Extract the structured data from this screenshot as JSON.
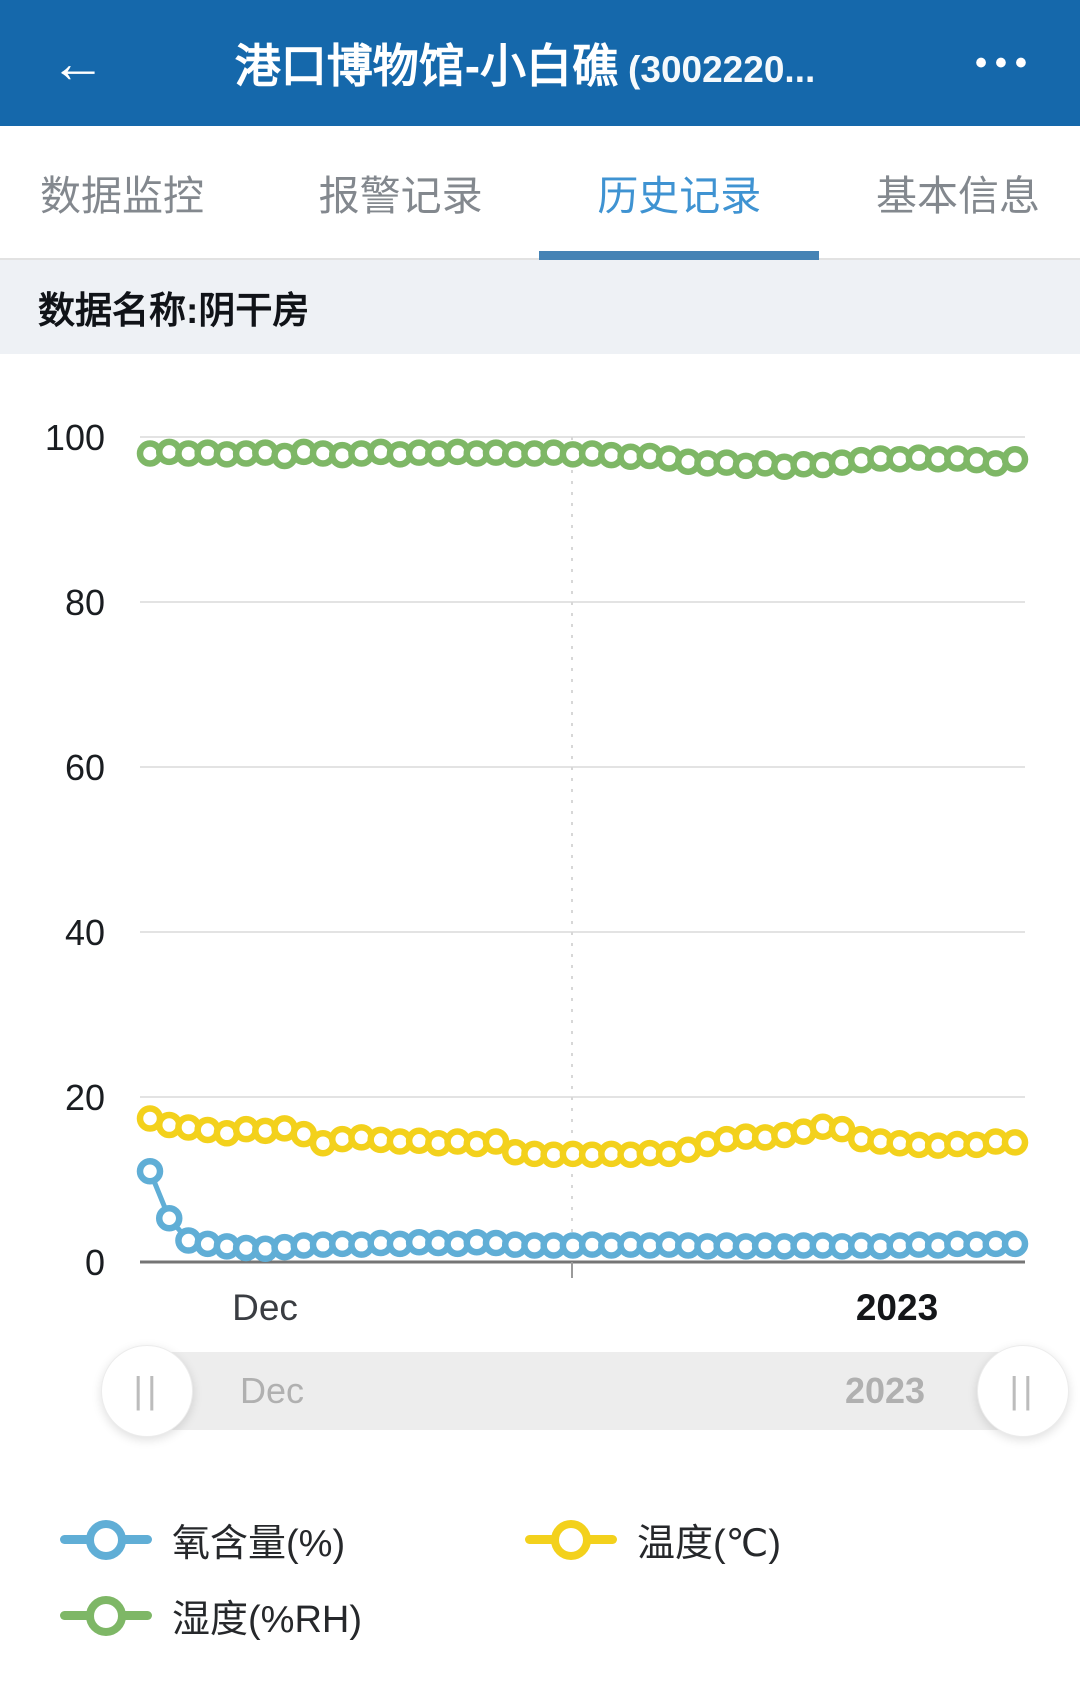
{
  "header": {
    "back_icon": "←",
    "title": "港口博物馆-小白礁",
    "device_code": "(3002220...",
    "menu_icon": "•••"
  },
  "tabs": [
    {
      "label": "数据监控",
      "active": false
    },
    {
      "label": "报警记录",
      "active": false
    },
    {
      "label": "历史记录",
      "active": true
    },
    {
      "label": "基本信息",
      "active": false
    }
  ],
  "subtitle": "数据名称:阴干房",
  "chart_data": {
    "type": "line",
    "title": "数据名称:阴干房",
    "ylim": [
      0,
      100
    ],
    "yticks": [
      0,
      20,
      40,
      60,
      80,
      100
    ],
    "x_tick_labels": [
      "Dec",
      "2023"
    ],
    "grid": true,
    "legend_position": "bottom",
    "series": [
      {
        "name": "氧含量(%)",
        "color": "#60aed6",
        "values": [
          11,
          5.3,
          2.6,
          2.2,
          1.9,
          1.7,
          1.6,
          1.8,
          2,
          2.1,
          2.2,
          2.1,
          2.3,
          2.2,
          2.4,
          2.3,
          2.2,
          2.4,
          2.3,
          2.1,
          2,
          2,
          2,
          2.1,
          2,
          2.1,
          2,
          2.1,
          2,
          1.9,
          2,
          1.9,
          2,
          1.9,
          2,
          2,
          1.9,
          2,
          1.9,
          2,
          2.1,
          2,
          2.2,
          2.1,
          2.2,
          2.2
        ]
      },
      {
        "name": "温度(℃)",
        "color": "#f3d11c",
        "values": [
          17.4,
          16.6,
          16.3,
          16,
          15.6,
          16.1,
          15.9,
          16.2,
          15.5,
          14.4,
          14.9,
          15.1,
          14.8,
          14.6,
          14.7,
          14.4,
          14.6,
          14.3,
          14.6,
          13.3,
          13.1,
          13,
          13.1,
          13,
          13.1,
          13,
          13.2,
          13.1,
          13.6,
          14.3,
          14.9,
          15.2,
          15.1,
          15.4,
          15.8,
          16.4,
          16.1,
          14.9,
          14.6,
          14.4,
          14.2,
          14.1,
          14.3,
          14.2,
          14.6,
          14.5
        ]
      },
      {
        "name": "湿度(%RH)",
        "color": "#7eb766",
        "values": [
          98,
          98.2,
          98,
          98.1,
          97.9,
          98,
          98.1,
          97.7,
          98.2,
          98,
          97.8,
          98,
          98.2,
          97.9,
          98.1,
          98,
          98.2,
          98,
          98.1,
          97.9,
          98,
          98.1,
          97.9,
          98,
          97.8,
          97.6,
          97.7,
          97.4,
          97,
          96.8,
          96.9,
          96.5,
          96.8,
          96.4,
          96.7,
          96.6,
          96.9,
          97.2,
          97.4,
          97.3,
          97.5,
          97.3,
          97.4,
          97.2,
          96.8,
          97.3
        ]
      }
    ]
  },
  "slider": {
    "left_label": "Dec",
    "right_label": "2023",
    "handle_glyph": "||"
  },
  "colors": {
    "header_bg": "#1568ab",
    "active_tab": "#3f93d2",
    "tab_underline": "#4583b5",
    "inactive_tab": "#83888e",
    "subtitle_bg": "#eef1f5",
    "grid_line": "#e3e3e3",
    "axis_line": "#757575",
    "dashed_line": "#d7d7d7",
    "tick_label": "#1a1d21",
    "x_label_month": "#3a3d42",
    "x_label_year": "#141619",
    "slider_track": "#ededed",
    "slider_label": "#b0b0b0"
  }
}
